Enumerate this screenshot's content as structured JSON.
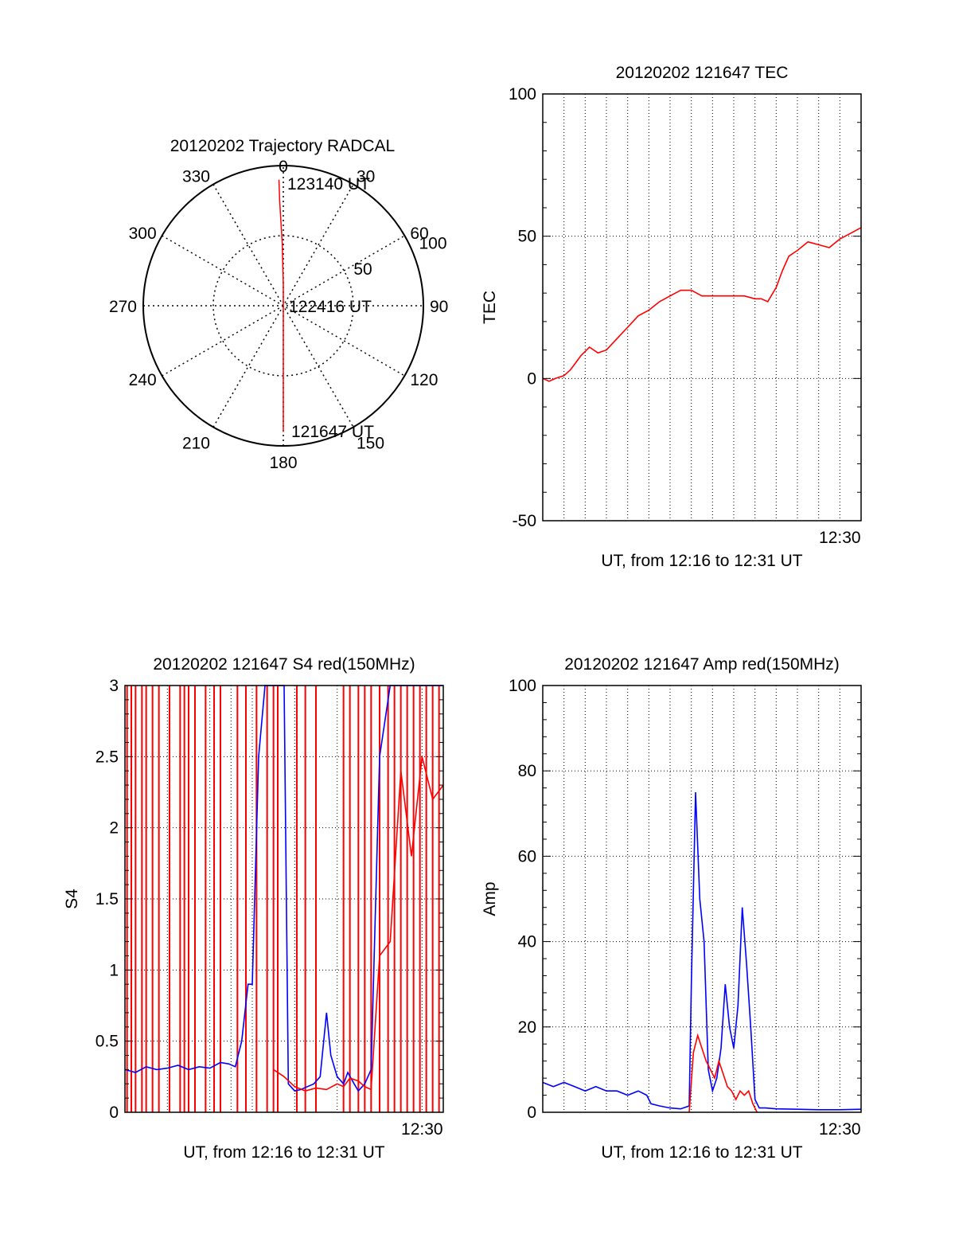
{
  "chart_data": [
    {
      "type": "polar",
      "title": "20120202 Trajectory RADCAL",
      "angle_labels": [
        "0",
        "30",
        "60",
        "90",
        "120",
        "150",
        "180",
        "210",
        "240",
        "270",
        "300",
        "330"
      ],
      "radial_labels": [
        "50",
        "100"
      ],
      "rlim": [
        0,
        100
      ],
      "grid": true,
      "trajectory_color": "#ff0000",
      "trajectory": [
        {
          "az": 180,
          "r": 90
        },
        {
          "az": 180,
          "r": 60
        },
        {
          "az": 180,
          "r": 30
        },
        {
          "az": 180,
          "r": 5
        },
        {
          "az": 0,
          "r": 0
        },
        {
          "az": 0,
          "r": 15
        },
        {
          "az": 359,
          "r": 45
        },
        {
          "az": 358,
          "r": 75
        },
        {
          "az": 358,
          "r": 90
        }
      ],
      "annotations": [
        {
          "text": "123140 UT",
          "az": 8,
          "r": 90
        },
        {
          "text": "122416 UT",
          "az": 90,
          "r": 2
        },
        {
          "text": "121647 UT",
          "az": 165,
          "r": 92
        }
      ]
    },
    {
      "type": "line",
      "title": "20120202 121647 TEC",
      "xlabel": "UT, from 12:16 to 12:31 UT",
      "ylabel": "TEC",
      "xlim": [
        0,
        15
      ],
      "ylim": [
        -50,
        100
      ],
      "yticks": [
        "-50",
        "0",
        "50",
        "100"
      ],
      "xtick_labels": [
        {
          "x": 14,
          "label": "12:30"
        }
      ],
      "grid": true,
      "series": [
        {
          "color": "#ff0000",
          "x": [
            0,
            0.3,
            0.6,
            1,
            1.3,
            1.5,
            1.8,
            2.2,
            2.6,
            3,
            3.5,
            4,
            4.5,
            5,
            5.5,
            6,
            6.5,
            7,
            7.5,
            7.7,
            8,
            8.5,
            9,
            9.5,
            10,
            10.3,
            10.6,
            11,
            11.3,
            11.6,
            12,
            12.5,
            13,
            13.5,
            14,
            14.5,
            15
          ],
          "y": [
            0,
            -1,
            0,
            1,
            3,
            5,
            8,
            11,
            9,
            10,
            14,
            18,
            22,
            24,
            27,
            29,
            31,
            31,
            29,
            29,
            29,
            29,
            29,
            29,
            28,
            28,
            27,
            32,
            38,
            43,
            45,
            48,
            47,
            46,
            49,
            51,
            53
          ]
        }
      ]
    },
    {
      "type": "line",
      "title": "20120202 121647 S4 red(150MHz)",
      "xlabel": "UT, from 12:16 to 12:31 UT",
      "ylabel": "S4",
      "xlim": [
        0,
        15
      ],
      "ylim": [
        0,
        3
      ],
      "yticks": [
        "0",
        "0.5",
        "1",
        "1.5",
        "2",
        "2.5",
        "3"
      ],
      "xtick_labels": [
        {
          "x": 14,
          "label": "12:30"
        }
      ],
      "grid": true,
      "series": [
        {
          "color": "#0000ff",
          "x": [
            0,
            0.5,
            1,
            1.5,
            2,
            2.5,
            3,
            3.5,
            4,
            4.5,
            4.9,
            5.2,
            5.5,
            5.8,
            6,
            6.3,
            6.6,
            6.9,
            7.2,
            7.5,
            7.7,
            8,
            8.3,
            8.6,
            8.9,
            9.2,
            9.5,
            9.7,
            10,
            10.3,
            10.5,
            10.8,
            11,
            11.3,
            11.6,
            12,
            12.5,
            13,
            13.5,
            14,
            14.5,
            15
          ],
          "y": [
            0.3,
            0.28,
            0.32,
            0.3,
            0.31,
            0.33,
            0.3,
            0.32,
            0.31,
            0.35,
            0.34,
            0.32,
            0.5,
            0.9,
            0.9,
            2.5,
            3,
            3,
            3,
            3,
            0.2,
            0.15,
            0.16,
            0.18,
            0.2,
            0.25,
            0.7,
            0.4,
            0.25,
            0.2,
            0.28,
            0.2,
            0.15,
            0.2,
            0.3,
            2.5,
            3,
            3,
            3,
            3,
            3,
            3
          ]
        },
        {
          "color": "#ff0000",
          "x": [
            7,
            7.5,
            8,
            8.5,
            9,
            9.5,
            10,
            10.3,
            10.6,
            11,
            11.3,
            11.6,
            12,
            12.5,
            13,
            13.5,
            14,
            14.5,
            15
          ],
          "y": [
            0.3,
            0.25,
            0.18,
            0.15,
            0.17,
            0.16,
            0.2,
            0.18,
            0.24,
            0.22,
            0.18,
            0.16,
            1.1,
            1.2,
            2.4,
            1.8,
            2.5,
            2.2,
            2.3
          ]
        }
      ],
      "vlines": {
        "color": "#ff0000",
        "x": [
          0.1,
          0.3,
          0.5,
          0.8,
          1.0,
          1.3,
          1.6,
          2.1,
          2.6,
          2.8,
          3.0,
          3.3,
          3.8,
          4.2,
          4.5,
          5.3,
          5.7,
          6.2,
          6.7,
          7.0,
          7.2,
          8.1,
          8.5,
          9.0,
          10.3,
          10.6,
          11.0,
          11.3,
          11.6,
          12.0,
          12.4,
          12.7,
          13.0,
          13.3,
          13.6,
          13.9,
          14.2,
          14.5,
          14.8
        ]
      }
    },
    {
      "type": "line",
      "title": "20120202 121647 Amp red(150MHz)",
      "xlabel": "UT, from 12:16 to 12:31 UT",
      "ylabel": "Amp",
      "xlim": [
        0,
        15
      ],
      "ylim": [
        0,
        100
      ],
      "yticks": [
        "0",
        "20",
        "40",
        "60",
        "80",
        "100"
      ],
      "xtick_labels": [
        {
          "x": 14,
          "label": "12:30"
        }
      ],
      "grid": true,
      "series": [
        {
          "color": "#0000ff",
          "x": [
            0,
            0.5,
            1,
            1.5,
            2,
            2.5,
            3,
            3.5,
            4,
            4.5,
            4.9,
            5.1,
            5.5,
            6,
            6.5,
            6.9,
            7.0,
            7.2,
            7.4,
            7.6,
            7.8,
            8.0,
            8.2,
            8.4,
            8.6,
            8.8,
            9.0,
            9.2,
            9.4,
            9.6,
            9.8,
            10.0,
            10.2,
            10.5,
            11,
            12,
            13,
            14,
            15
          ],
          "y": [
            7,
            6,
            7,
            6,
            5,
            6,
            5,
            5,
            4,
            5,
            4,
            2,
            1.5,
            1,
            0.8,
            1.5,
            30,
            75,
            50,
            40,
            10,
            5,
            8,
            15,
            30,
            20,
            15,
            25,
            48,
            35,
            20,
            3,
            1,
            1,
            0.8,
            0.7,
            0.6,
            0.6,
            0.7
          ]
        },
        {
          "color": "#ff0000",
          "x": [
            6.9,
            7.1,
            7.3,
            7.5,
            7.7,
            7.9,
            8.1,
            8.3,
            8.5,
            8.7,
            8.9,
            9.1,
            9.3,
            9.5,
            9.7,
            9.9,
            10.1
          ],
          "y": [
            0,
            14,
            18,
            15,
            12,
            10,
            8,
            12,
            9,
            6,
            5,
            3,
            5,
            4,
            5,
            2,
            0
          ]
        }
      ]
    }
  ]
}
